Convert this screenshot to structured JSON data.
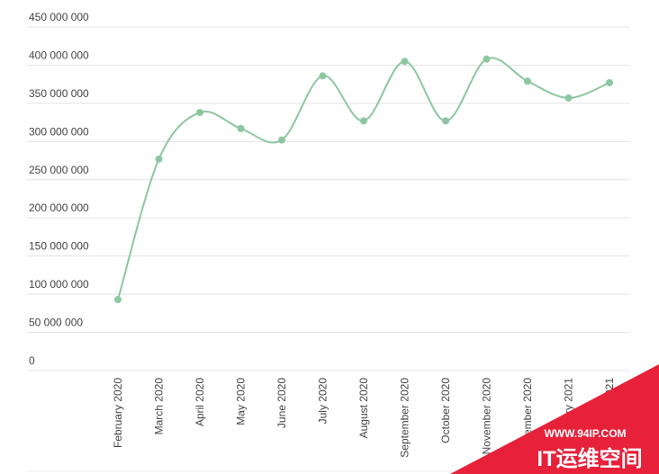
{
  "chart_data": {
    "type": "line",
    "color": "#8cc7a1",
    "grid": true,
    "categories": [
      "February 2020",
      "March 2020",
      "April 2020",
      "May 2020",
      "June 2020",
      "July 2020",
      "August 2020",
      "September 2020",
      "October 2020",
      "November 2020",
      "December 2020",
      "January 2021",
      "February 2021"
    ],
    "values": [
      93000000,
      277000000,
      338000000,
      317000000,
      302000000,
      386000000,
      327000000,
      405000000,
      327000000,
      408000000,
      379000000,
      357000000,
      377000000
    ],
    "ylim": [
      0,
      450000000
    ],
    "yticks": [
      0,
      {
        "value": 50000000,
        "label": "50 000 000"
      },
      {
        "value": 100000000,
        "label": "100 000 000"
      },
      {
        "value": 150000000,
        "label": "150 000 000"
      },
      {
        "value": 200000000,
        "label": "200 000 000"
      },
      {
        "value": 250000000,
        "label": "250 000 000"
      },
      {
        "value": 300000000,
        "label": "300 000 000"
      },
      {
        "value": 350000000,
        "label": "350 000 000"
      },
      {
        "value": 400000000,
        "label": "400 000 000"
      },
      {
        "value": 450000000,
        "label": "450 000 000"
      }
    ]
  },
  "watermark": {
    "url": "WWW.94IP.COM",
    "text": "IT运维空间"
  }
}
